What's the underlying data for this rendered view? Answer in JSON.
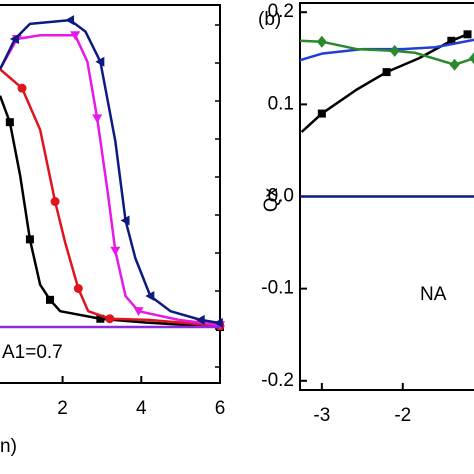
{
  "chart_data": [
    {
      "type": "line",
      "annotations": [
        "A1=0.7"
      ],
      "x_label": "n)",
      "xlim": [
        0.41,
        6
      ],
      "ylim": [
        0,
        1
      ],
      "xticks": [
        2,
        4,
        6
      ],
      "series": [
        {
          "color": "#000000",
          "marker": "square",
          "x": [
            0.41,
            0.66,
            0.92,
            1.17,
            1.43,
            1.68,
            1.94,
            2.96,
            4.1,
            6
          ],
          "values": [
            0.76,
            0.69,
            0.55,
            0.38,
            0.26,
            0.22,
            0.19,
            0.17,
            0.16,
            0.148
          ]
        },
        {
          "color": "#e0141e",
          "marker": "circle",
          "x": [
            0.41,
            0.97,
            1.43,
            1.81,
            2.07,
            2.4,
            2.65,
            3.2,
            4.18,
            6
          ],
          "values": [
            0.83,
            0.78,
            0.67,
            0.48,
            0.37,
            0.25,
            0.19,
            0.17,
            0.167,
            0.151
          ]
        },
        {
          "color": "#e619e6",
          "marker": "triangle-down",
          "x": [
            0.41,
            0.84,
            1.43,
            2.32,
            2.63,
            2.88,
            3.14,
            3.34,
            3.6,
            3.93,
            4.95,
            6
          ],
          "values": [
            0.83,
            0.91,
            0.92,
            0.92,
            0.85,
            0.7,
            0.51,
            0.35,
            0.23,
            0.19,
            0.167,
            0.153
          ]
        },
        {
          "color": "#0d1a80",
          "marker": "triangle-left",
          "x": [
            0.41,
            0.79,
            1.17,
            2.19,
            2.58,
            2.96,
            3.34,
            3.6,
            3.85,
            4.23,
            4.74,
            5.51,
            5.97
          ],
          "values": [
            0.83,
            0.91,
            0.95,
            0.96,
            0.93,
            0.85,
            0.64,
            0.43,
            0.33,
            0.23,
            0.19,
            0.167,
            0.159
          ]
        },
        {
          "color": "#8a2be2",
          "marker": "none",
          "x": [
            0.41,
            6
          ],
          "values": [
            0.148,
            0.148
          ]
        }
      ]
    },
    {
      "type": "line",
      "title": "(b)",
      "y_label": "Qx",
      "annotations": [
        "NA"
      ],
      "xlim": [
        -3.27,
        -1.12
      ],
      "ylim": [
        -0.21,
        0.21
      ],
      "xticks": [
        -3,
        -2
      ],
      "yticks": [
        0.2,
        0.1,
        {
          "value": 0,
          "label": "0.0"
        },
        -0.1,
        -0.2
      ],
      "series": [
        {
          "color": "#000000",
          "marker": "square",
          "x": [
            -3.25,
            -3,
            -2.57,
            -2.2,
            -1.8,
            -1.4,
            -1.2
          ],
          "values": [
            0.07,
            0.09,
            0.116,
            0.135,
            0.15,
            0.169,
            0.176
          ]
        },
        {
          "color": "#1f3fd6",
          "marker": "none",
          "x": [
            -3.27,
            -3,
            -2.5,
            -2,
            -1.6,
            -1.12
          ],
          "values": [
            0.148,
            0.155,
            0.16,
            0.16,
            0.162,
            0.17
          ]
        },
        {
          "color": "#2a8a2a",
          "marker": "diamond",
          "x": [
            -3.27,
            -3,
            -2.57,
            -2.1,
            -1.85,
            -1.36,
            -1.12
          ],
          "values": [
            0.169,
            0.168,
            0.16,
            0.158,
            0.156,
            0.143,
            0.15
          ]
        },
        {
          "color": "#0d1a80",
          "marker": "none",
          "x": [
            -3.27,
            -1.12
          ],
          "values": [
            0,
            0
          ]
        }
      ]
    }
  ]
}
